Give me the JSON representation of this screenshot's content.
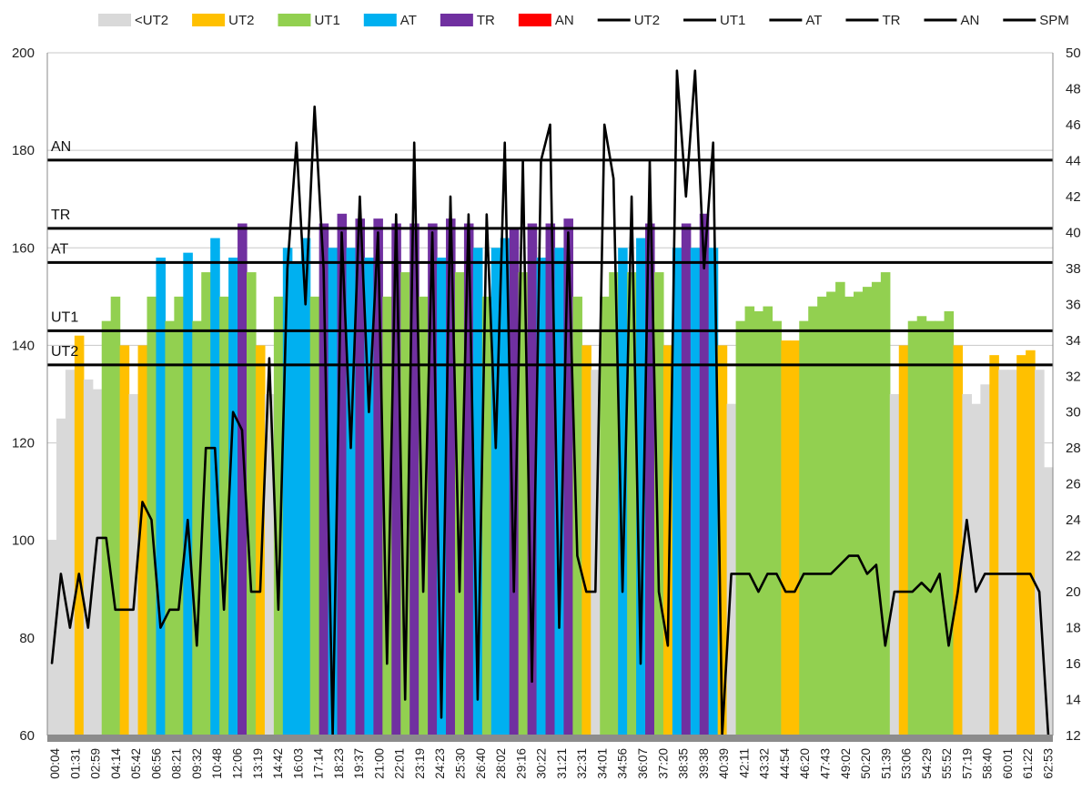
{
  "chart_data": {
    "type": "area",
    "title": "",
    "legend": {
      "placement": "top",
      "entries": [
        {
          "label": "<UT2",
          "kind": "area",
          "color": "#d9d9d9"
        },
        {
          "label": "UT2",
          "kind": "area",
          "color": "#ffc000"
        },
        {
          "label": "UT1",
          "kind": "area",
          "color": "#92d050"
        },
        {
          "label": "AT",
          "kind": "area",
          "color": "#00b0f0"
        },
        {
          "label": "TR",
          "kind": "area",
          "color": "#7030a0"
        },
        {
          "label": "AN",
          "kind": "area",
          "color": "#ff0000"
        },
        {
          "label": "UT2",
          "kind": "line",
          "color": "#000000"
        },
        {
          "label": "UT1",
          "kind": "line",
          "color": "#000000"
        },
        {
          "label": "AT",
          "kind": "line",
          "color": "#000000"
        },
        {
          "label": "TR",
          "kind": "line",
          "color": "#000000"
        },
        {
          "label": "AN",
          "kind": "line",
          "color": "#000000"
        },
        {
          "label": "SPM",
          "kind": "line",
          "color": "#000000"
        }
      ]
    },
    "y_left": {
      "range": [
        60,
        200
      ],
      "ticks": [
        "60",
        "80",
        "100",
        "120",
        "140",
        "160",
        "180",
        "200"
      ]
    },
    "y_right": {
      "range": [
        12,
        50
      ],
      "ticks": [
        "12",
        "14",
        "16",
        "18",
        "20",
        "22",
        "24",
        "26",
        "28",
        "30",
        "32",
        "34",
        "36",
        "38",
        "40",
        "42",
        "44",
        "46",
        "48",
        "50"
      ]
    },
    "x_tick_labels": [
      "00:04",
      "01:31",
      "02:59",
      "04:14",
      "05:42",
      "06:56",
      "08:21",
      "09:32",
      "10:48",
      "12:06",
      "13:19",
      "14:42",
      "16:03",
      "17:14",
      "18:23",
      "19:37",
      "21:00",
      "22:01",
      "23:19",
      "24:23",
      "25:30",
      "26:40",
      "28:02",
      "29:16",
      "30:22",
      "31:21",
      "32:31",
      "34:01",
      "34:56",
      "36:07",
      "37:20",
      "38:35",
      "39:38",
      "40:39",
      "42:11",
      "43:32",
      "44:54",
      "46:20",
      "47:43",
      "49:02",
      "50:20",
      "51:39",
      "53:06",
      "54:29",
      "55:52",
      "57:19",
      "58:40",
      "60:01",
      "61:22",
      "62:53"
    ],
    "zones": [
      {
        "label": "AN",
        "value": 178
      },
      {
        "label": "TR",
        "value": 164
      },
      {
        "label": "AT",
        "value": 157
      },
      {
        "label": "UT1",
        "value": 143
      },
      {
        "label": "UT2",
        "value": 136
      }
    ],
    "zone_colors": {
      "below": "#d9d9d9",
      "UT2": "#ffc000",
      "UT1": "#92d050",
      "AT": "#00b0f0",
      "TR": "#7030a0",
      "AN": "#ff0000"
    },
    "heart_rate": [
      100,
      125,
      135,
      142,
      133,
      131,
      145,
      150,
      140,
      130,
      140,
      150,
      158,
      145,
      150,
      159,
      145,
      155,
      162,
      150,
      158,
      165,
      155,
      140,
      130,
      150,
      160,
      157,
      162,
      150,
      165,
      160,
      167,
      160,
      166,
      158,
      166,
      150,
      165,
      155,
      165,
      150,
      165,
      158,
      166,
      155,
      165,
      160,
      150,
      160,
      162,
      164,
      155,
      165,
      158,
      165,
      160,
      166,
      150,
      140,
      135,
      150,
      155,
      160,
      155,
      162,
      165,
      155,
      140,
      160,
      165,
      160,
      167,
      160,
      140,
      128,
      145,
      148,
      147,
      148,
      145,
      141,
      141,
      145,
      148,
      150,
      151,
      153,
      150,
      151,
      152,
      153,
      155,
      130,
      140,
      145,
      146,
      145,
      145,
      147,
      140,
      130,
      128,
      132,
      138,
      135,
      135,
      138,
      139,
      135,
      115
    ],
    "spm": [
      16,
      21,
      18,
      21,
      18,
      23,
      23,
      19,
      19,
      19,
      25,
      24,
      18,
      19,
      19,
      24,
      17,
      28,
      28,
      19,
      30,
      29,
      20,
      20,
      33,
      19,
      38,
      45,
      36,
      47,
      38,
      12,
      40,
      28,
      42,
      30,
      40,
      16,
      41,
      14,
      45,
      20,
      40,
      13,
      42,
      20,
      41,
      14,
      41,
      28,
      45,
      20,
      44,
      15,
      44,
      46,
      18,
      40,
      22,
      20,
      20,
      46,
      43,
      20,
      42,
      16,
      44,
      20,
      17,
      49,
      42,
      49,
      38,
      45,
      12,
      21,
      21,
      21,
      20,
      21,
      21,
      20,
      20,
      21,
      21,
      21,
      21,
      21.5,
      22,
      22,
      21,
      21.5,
      17,
      20,
      20,
      20,
      20.5,
      20,
      21,
      17,
      20,
      24,
      20,
      21,
      21,
      21,
      21,
      21,
      21,
      20,
      12
    ]
  }
}
